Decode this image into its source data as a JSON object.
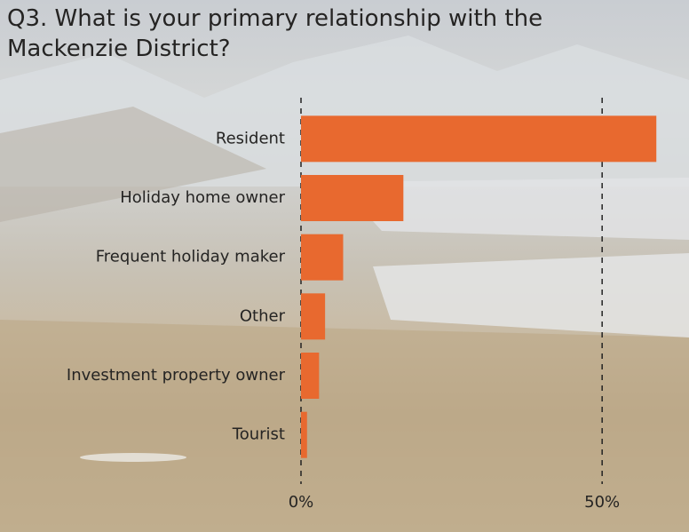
{
  "chart_data": {
    "type": "barh",
    "title": "Q3. What is your primary relationship with the Mackenzie District?",
    "categories": [
      "Resident",
      "Holiday home owner",
      "Frequent holiday maker",
      "Other",
      "Investment property owner",
      "Tourist"
    ],
    "values": [
      59,
      17,
      7,
      4,
      3,
      1
    ],
    "color": "#e8692f",
    "xlim": [
      0,
      60
    ],
    "xticks": [
      {
        "value": 0,
        "label": "0%"
      },
      {
        "value": 50,
        "label": "50%"
      }
    ],
    "grid": true
  }
}
